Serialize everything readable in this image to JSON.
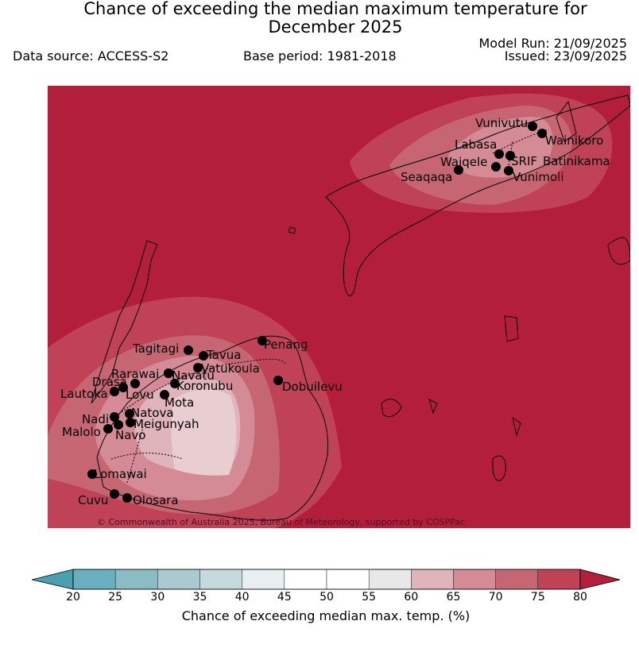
{
  "header": {
    "title_line1": "Chance of exceeding the median maximum temperature for",
    "title_line2": "December 2025",
    "data_source": "Data source: ACCESS-S2",
    "base_period": "Base period: 1981-2018",
    "model_run": "Model Run: 21/09/2025",
    "issued": "Issued: 23/09/2025"
  },
  "map": {
    "copyright": "© Commonwealth of Australia 2025, Bureau of Meteorology, supported by COSPPac",
    "background_color": "#b31e3a",
    "stations": [
      {
        "name": "Vunivutu"
      },
      {
        "name": "Wainikoro"
      },
      {
        "name": "Labasa"
      },
      {
        "name": "SRIF"
      },
      {
        "name": "Batinikama"
      },
      {
        "name": "Waiqele"
      },
      {
        "name": "Seaqaqa"
      },
      {
        "name": "Vunimoli"
      },
      {
        "name": "Tagitagi"
      },
      {
        "name": "Penang"
      },
      {
        "name": "Tavua"
      },
      {
        "name": "Rarawai"
      },
      {
        "name": "Navatu"
      },
      {
        "name": "Vatukoula"
      },
      {
        "name": "Drasa"
      },
      {
        "name": "Koronubu"
      },
      {
        "name": "Lautoka"
      },
      {
        "name": "Lovu"
      },
      {
        "name": "Dobuilevu"
      },
      {
        "name": "Mota"
      },
      {
        "name": "Natova"
      },
      {
        "name": "Nadi"
      },
      {
        "name": "Meigunyah"
      },
      {
        "name": "Malolo"
      },
      {
        "name": "Navo"
      },
      {
        "name": "Lomawai"
      },
      {
        "name": "Cuvu"
      },
      {
        "name": "Olosara"
      }
    ]
  },
  "colorbar": {
    "title": "Chance of exceeding median max. temp. (%)",
    "ticks": [
      "20",
      "25",
      "30",
      "35",
      "40",
      "45",
      "50",
      "55",
      "60",
      "65",
      "70",
      "75",
      "80"
    ],
    "colors": [
      "#6aafbd",
      "#8bbcc5",
      "#a9cacf",
      "#c6dadd",
      "#e9eff1",
      "#ffffff",
      "#ffffff",
      "#e8e8e8",
      "#e0b4bb",
      "#d48b96",
      "#c76673",
      "#c04257"
    ],
    "under_color": "#4aa0ae",
    "over_color": "#b31e3a"
  }
}
